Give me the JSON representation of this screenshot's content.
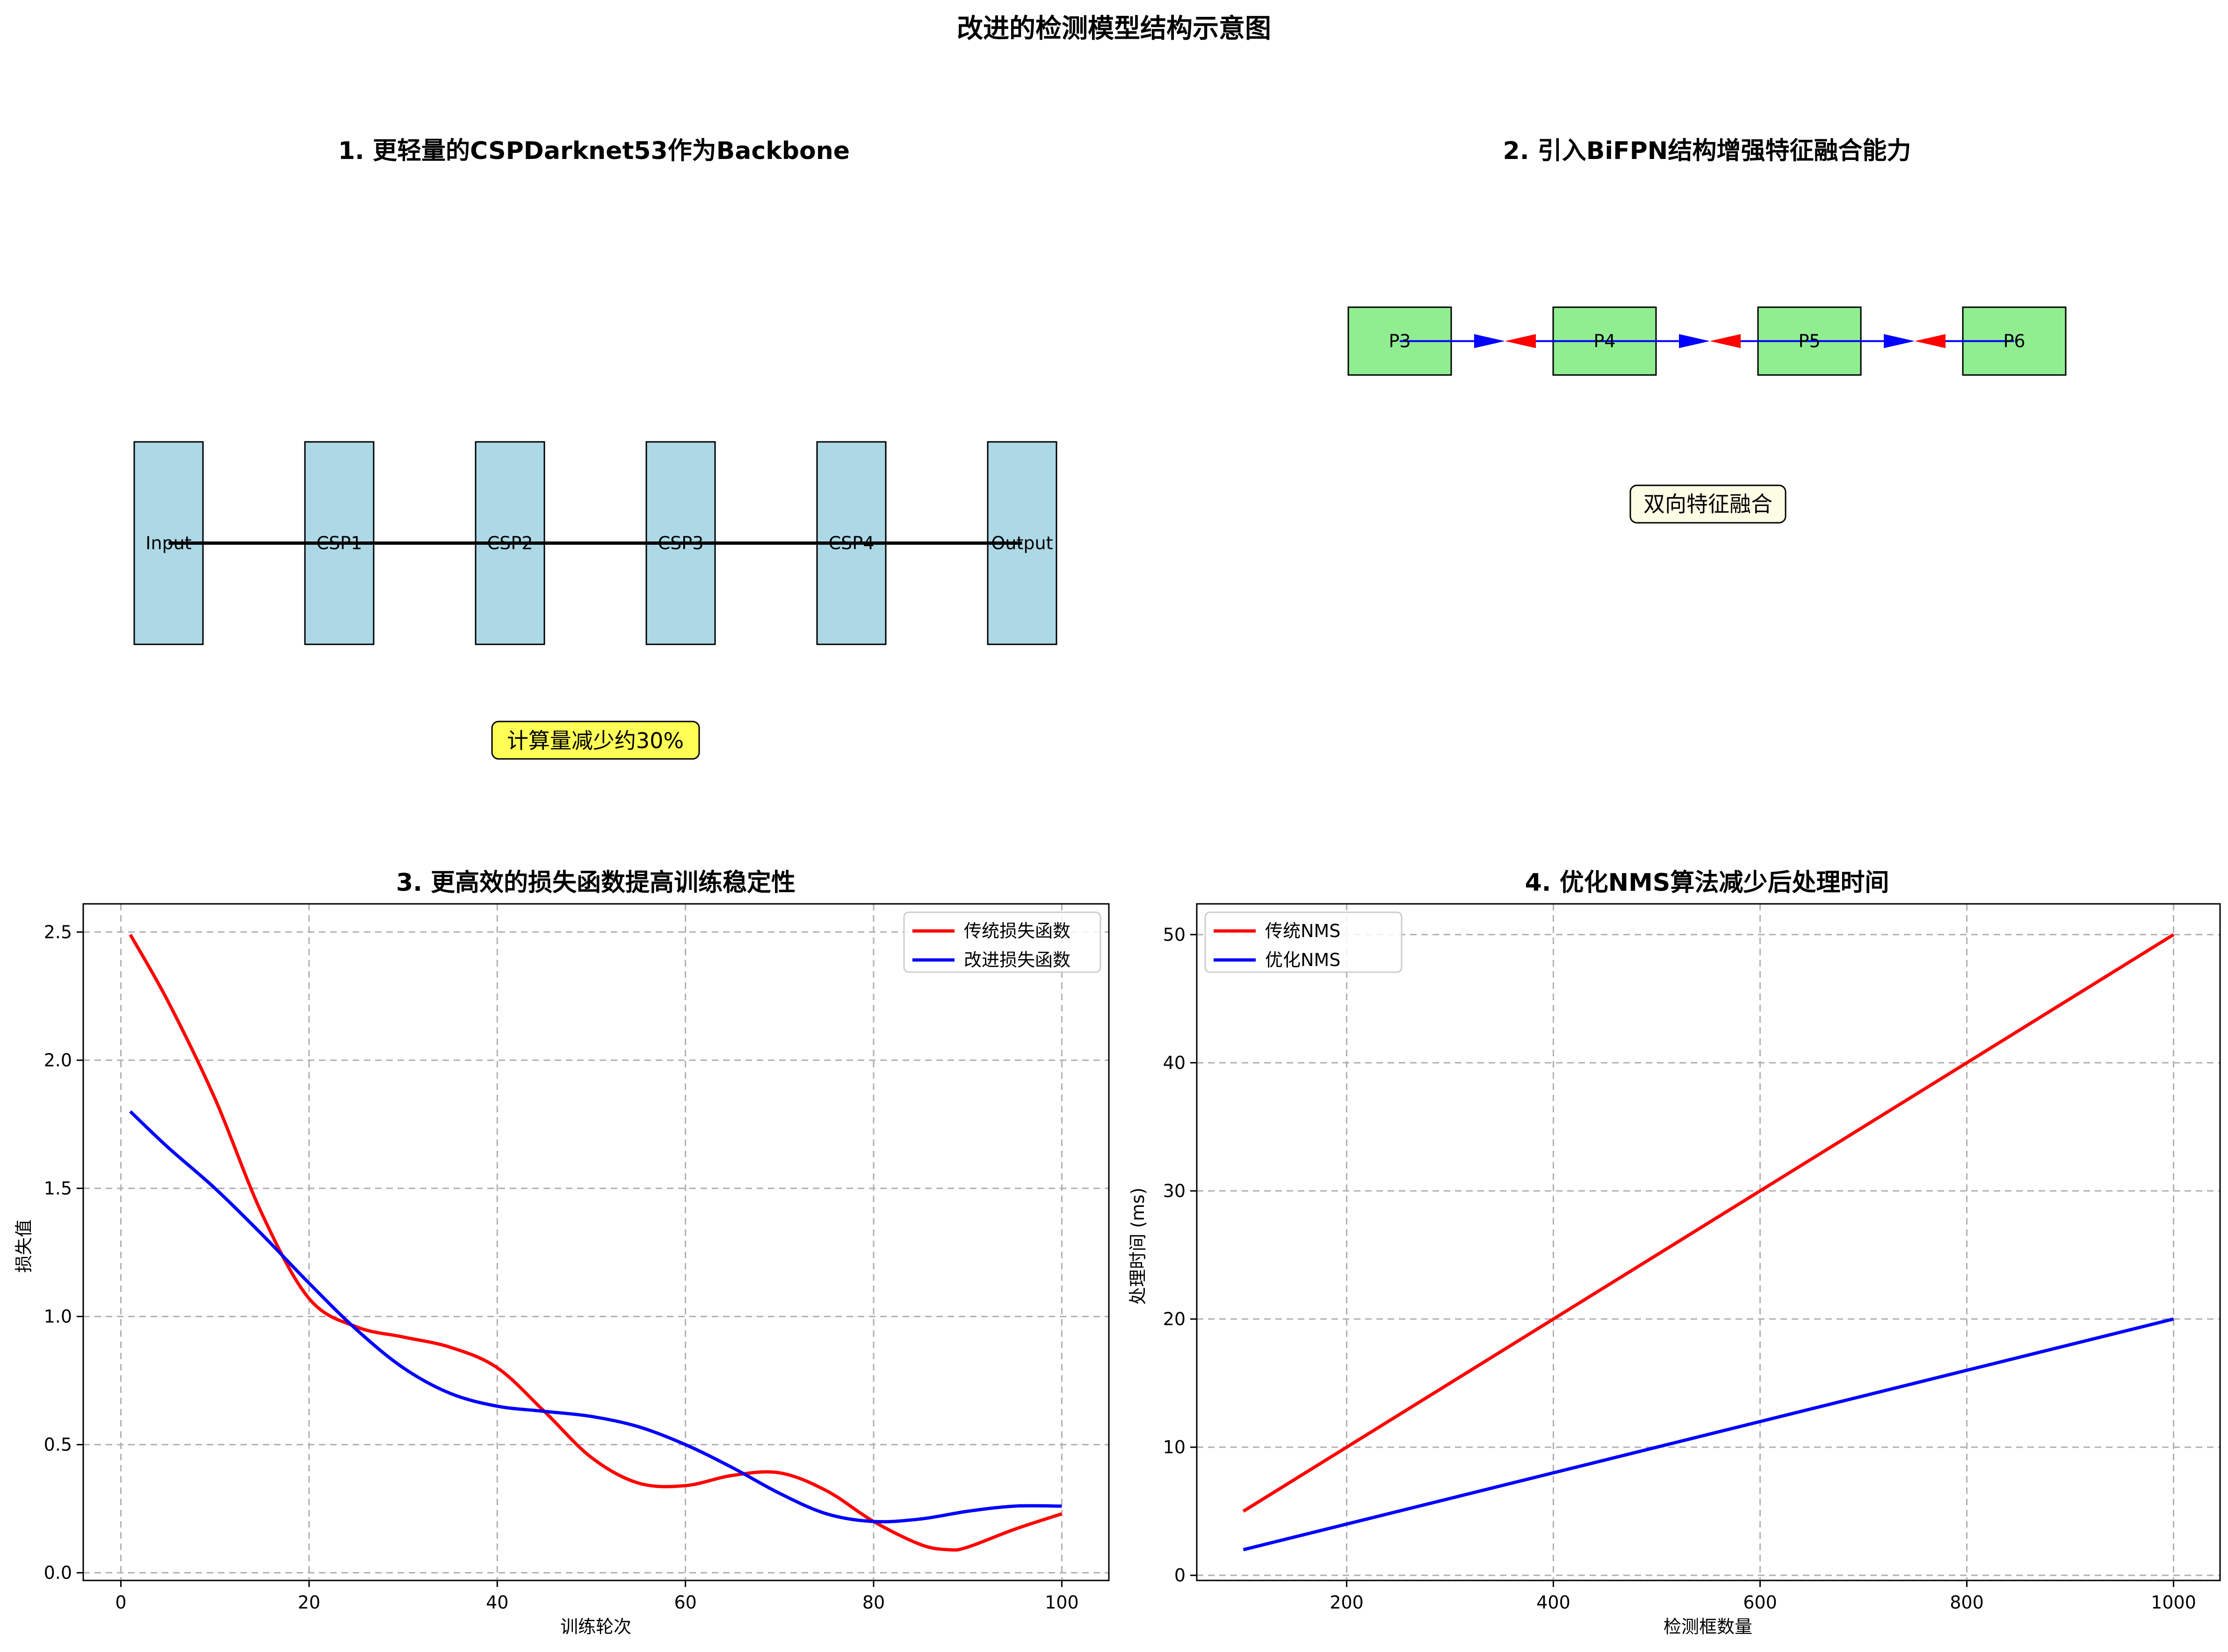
{
  "title": "改进的检测模型结构示意图",
  "panels": {
    "p1": {
      "title": "1. 更轻量的CSPDarknet53作为Backbone",
      "blocks": [
        "Input",
        "CSP1",
        "CSP2",
        "CSP3",
        "CSP4",
        "Output"
      ],
      "note": "计算量减少约30%",
      "block_color": "#add8e6",
      "note_color": "#ffff55"
    },
    "p2": {
      "title": "2. 引入BiFPN结构增强特征融合能力",
      "nodes": [
        "P3",
        "P4",
        "P5",
        "P6"
      ],
      "note": "双向特征融合",
      "node_color": "#90ee90",
      "forward_arrow_color": "#0000ff",
      "backward_arrow_color": "#ff0000",
      "note_color": "#fdfde6"
    }
  },
  "chart_data": [
    {
      "type": "line",
      "title": "3. 更高效的损失函数提高训练稳定性",
      "xlabel": "训练轮次",
      "ylabel": "损失值",
      "xlim": [
        -4,
        105
      ],
      "ylim": [
        -0.03,
        2.61
      ],
      "xticks": [
        0,
        20,
        40,
        60,
        80,
        100
      ],
      "yticks": [
        0.0,
        0.5,
        1.0,
        1.5,
        2.0,
        2.5
      ],
      "grid": true,
      "legend_position": "upper-right",
      "series": [
        {
          "name": "传统损失函数",
          "color": "#ff0000",
          "x": [
            1,
            5,
            10,
            15,
            20,
            25,
            30,
            35,
            40,
            45,
            50,
            55,
            60,
            65,
            70,
            75,
            80,
            85,
            88,
            90,
            95,
            100
          ],
          "y": [
            2.49,
            2.23,
            1.85,
            1.4,
            1.07,
            0.96,
            0.92,
            0.88,
            0.8,
            0.63,
            0.45,
            0.35,
            0.34,
            0.38,
            0.39,
            0.32,
            0.2,
            0.11,
            0.09,
            0.1,
            0.17,
            0.23
          ]
        },
        {
          "name": "改进损失函数",
          "color": "#0000ff",
          "x": [
            1,
            5,
            10,
            15,
            20,
            25,
            30,
            35,
            40,
            45,
            50,
            55,
            60,
            65,
            70,
            75,
            80,
            85,
            90,
            95,
            100
          ],
          "y": [
            1.8,
            1.66,
            1.5,
            1.32,
            1.13,
            0.95,
            0.8,
            0.7,
            0.65,
            0.63,
            0.61,
            0.57,
            0.5,
            0.41,
            0.31,
            0.23,
            0.2,
            0.21,
            0.24,
            0.26,
            0.26
          ]
        }
      ]
    },
    {
      "type": "line",
      "title": "4. 优化NMS算法减少后处理时间",
      "xlabel": "检测框数量",
      "ylabel": "处理时间 (ms)",
      "xlim": [
        55,
        1045
      ],
      "ylim": [
        -0.4,
        52.4
      ],
      "xticks": [
        200,
        400,
        600,
        800,
        1000
      ],
      "yticks": [
        0,
        10,
        20,
        30,
        40,
        50
      ],
      "grid": true,
      "legend_position": "upper-left",
      "series": [
        {
          "name": "传统NMS",
          "color": "#ff0000",
          "x": [
            100,
            1000
          ],
          "y": [
            5,
            50
          ]
        },
        {
          "name": "优化NMS",
          "color": "#0000ff",
          "x": [
            100,
            1000
          ],
          "y": [
            2,
            20
          ]
        }
      ]
    }
  ]
}
